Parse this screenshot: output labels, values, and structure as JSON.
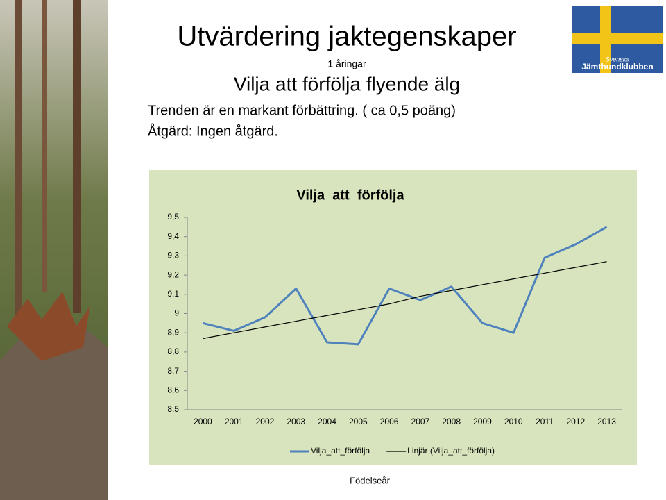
{
  "slide": {
    "title": "Utvärdering jaktegenskaper",
    "subtitle": "1 åringar",
    "heading": "Vilja att förfölja flyende älg",
    "lines": [
      "Trenden är en markant förbättring. ( ca 0,5 poäng)",
      "Åtgärd: Ingen åtgärd."
    ],
    "logo": [
      "Svenska",
      "Jämthundklubben"
    ]
  },
  "chart_data": {
    "type": "line",
    "title": "Vilja_att_förfölja",
    "x_label": "Födelseår",
    "categories": [
      "2000",
      "2001",
      "2002",
      "2003",
      "2004",
      "2005",
      "2006",
      "2007",
      "2008",
      "2009",
      "2010",
      "2011",
      "2012",
      "2013"
    ],
    "series": [
      {
        "name": "Vilja_att_förfölja",
        "color": "#4f81bd",
        "values": [
          8.95,
          8.91,
          8.98,
          9.13,
          8.85,
          8.84,
          9.13,
          9.07,
          9.14,
          8.95,
          8.9,
          9.29,
          9.36,
          9.45
        ]
      },
      {
        "name": "Linjär (Vilja_att_förfölja)",
        "color": "#000000",
        "values": [
          8.87,
          8.9,
          8.93,
          8.96,
          8.99,
          9.02,
          9.05,
          9.09,
          9.12,
          9.15,
          9.18,
          9.21,
          9.24,
          9.27
        ]
      }
    ],
    "ylim": [
      8.5,
      9.5
    ],
    "yticks": [
      {
        "value": 8.5,
        "label": "8,5"
      },
      {
        "value": 8.6,
        "label": "8,6"
      },
      {
        "value": 8.7,
        "label": "8,7"
      },
      {
        "value": 8.8,
        "label": "8,8"
      },
      {
        "value": 8.9,
        "label": "8,9"
      },
      9,
      {
        "value": 9.1,
        "label": "9,1"
      },
      {
        "value": 9.2,
        "label": "9,2"
      },
      {
        "value": 9.3,
        "label": "9,3"
      },
      {
        "value": 9.4,
        "label": "9,4"
      },
      {
        "value": 9.5,
        "label": "9,5"
      }
    ],
    "grid": false,
    "legend": "bottom"
  }
}
